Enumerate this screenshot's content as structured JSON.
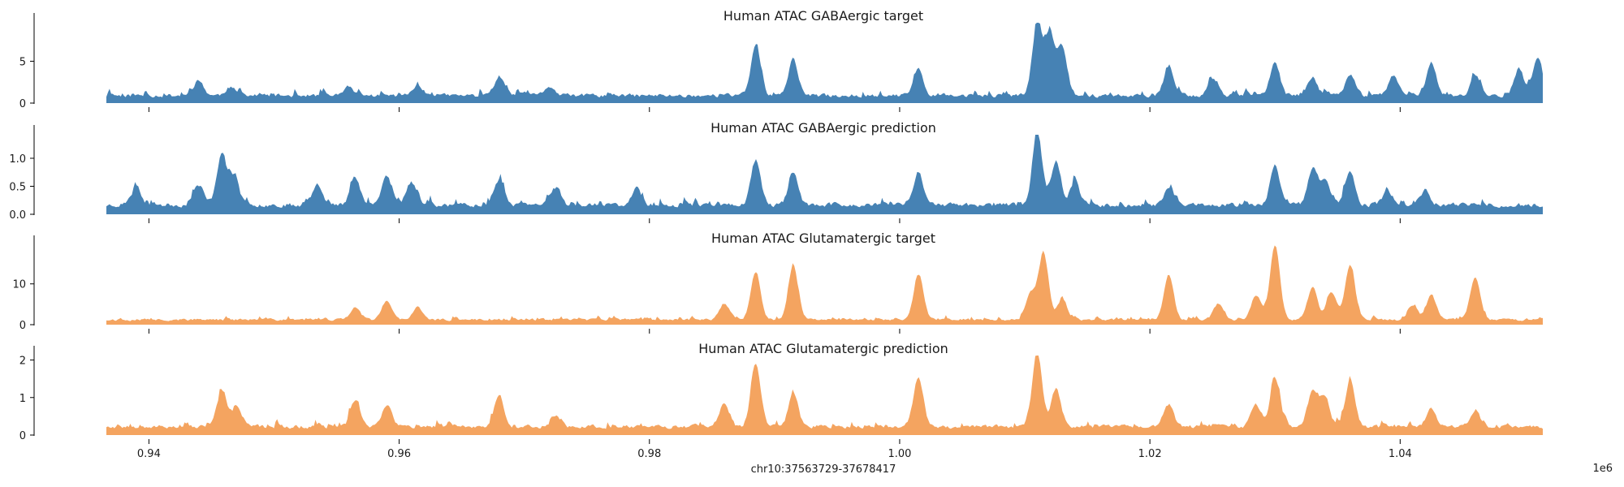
{
  "chart_data": {
    "type": "area",
    "xlabel": "chr10:37563729-37678417",
    "x_offset_label": "1e6",
    "xlim": [
      0.9366,
      1.0514
    ],
    "x_ticks": [
      0.94,
      0.96,
      0.98,
      1.0,
      1.02,
      1.04
    ],
    "x_tick_labels": [
      "0.94",
      "0.96",
      "0.98",
      "1.00",
      "1.02",
      "1.04"
    ],
    "grid": false,
    "colors": {
      "gaba": "#4682b4",
      "glut": "#f4a460"
    },
    "panels": [
      {
        "title": "Human ATAC GABAergic target",
        "color": "#4682b4",
        "ylim": [
          0,
          9.6
        ],
        "y_ticks": [
          0,
          5
        ],
        "y_tick_labels": [
          "0",
          "5"
        ],
        "baseline": 0.8,
        "noise": 0.7,
        "seed": 11,
        "peaks": [
          [
            0.944,
            1.7
          ],
          [
            0.9465,
            1.0
          ],
          [
            0.956,
            1.0
          ],
          [
            0.9615,
            1.2
          ],
          [
            0.968,
            2.3
          ],
          [
            0.972,
            1.1
          ],
          [
            0.9885,
            6.0
          ],
          [
            0.9915,
            4.3
          ],
          [
            1.0015,
            3.2
          ],
          [
            1.011,
            8.8
          ],
          [
            1.012,
            7.0
          ],
          [
            1.013,
            5.8
          ],
          [
            1.0215,
            3.4
          ],
          [
            1.025,
            2.0
          ],
          [
            1.03,
            3.8
          ],
          [
            1.033,
            2.2
          ],
          [
            1.036,
            2.6
          ],
          [
            1.0395,
            2.4
          ],
          [
            1.0425,
            4.0
          ],
          [
            1.046,
            2.4
          ],
          [
            1.0495,
            3.2
          ],
          [
            1.051,
            4.6
          ]
        ]
      },
      {
        "title": "Human ATAC GABAergic prediction",
        "color": "#4682b4",
        "ylim": [
          0,
          1.42
        ],
        "y_ticks": [
          0,
          0.5,
          1.0
        ],
        "y_tick_labels": [
          "0.0",
          "0.5",
          "1.0"
        ],
        "baseline": 0.15,
        "noise": 0.12,
        "seed": 23,
        "peaks": [
          [
            0.939,
            0.3
          ],
          [
            0.944,
            0.35
          ],
          [
            0.9458,
            0.9
          ],
          [
            0.9468,
            0.5
          ],
          [
            0.9535,
            0.38
          ],
          [
            0.9565,
            0.5
          ],
          [
            0.959,
            0.52
          ],
          [
            0.961,
            0.4
          ],
          [
            0.968,
            0.45
          ],
          [
            0.9725,
            0.3
          ],
          [
            0.979,
            0.28
          ],
          [
            0.9885,
            0.8
          ],
          [
            0.9915,
            0.55
          ],
          [
            1.0015,
            0.6
          ],
          [
            1.011,
            1.3
          ],
          [
            1.0125,
            0.8
          ],
          [
            1.014,
            0.4
          ],
          [
            1.0215,
            0.3
          ],
          [
            1.03,
            0.7
          ],
          [
            1.033,
            0.65
          ],
          [
            1.034,
            0.45
          ],
          [
            1.036,
            0.6
          ],
          [
            1.039,
            0.25
          ],
          [
            1.042,
            0.25
          ]
        ]
      },
      {
        "title": "Human ATAC Glutamatergic target",
        "color": "#f4a460",
        "ylim": [
          0,
          19.5
        ],
        "y_ticks": [
          0,
          10
        ],
        "y_tick_labels": [
          "0",
          "10"
        ],
        "baseline": 1.1,
        "noise": 0.9,
        "seed": 37,
        "peaks": [
          [
            0.9565,
            3.2
          ],
          [
            0.959,
            4.5
          ],
          [
            0.9615,
            3.0
          ],
          [
            0.986,
            4.0
          ],
          [
            0.9885,
            11.5
          ],
          [
            0.9915,
            13.0
          ],
          [
            1.0015,
            11.0
          ],
          [
            1.0105,
            6.5
          ],
          [
            1.0115,
            16.5
          ],
          [
            1.013,
            5.0
          ],
          [
            1.0215,
            11.0
          ],
          [
            1.0255,
            4.0
          ],
          [
            1.0285,
            6.0
          ],
          [
            1.03,
            18.5
          ],
          [
            1.033,
            8.0
          ],
          [
            1.0345,
            7.0
          ],
          [
            1.036,
            13.5
          ],
          [
            1.041,
            3.5
          ],
          [
            1.0425,
            6.0
          ],
          [
            1.046,
            10.5
          ]
        ]
      },
      {
        "title": "Human ATAC Glutamatergic prediction",
        "color": "#f4a460",
        "ylim": [
          0,
          2.12
        ],
        "y_ticks": [
          0,
          1,
          2
        ],
        "y_tick_labels": [
          "0",
          "1",
          "2"
        ],
        "baseline": 0.2,
        "noise": 0.16,
        "seed": 53,
        "peaks": [
          [
            0.9458,
            0.9
          ],
          [
            0.947,
            0.5
          ],
          [
            0.9565,
            0.7
          ],
          [
            0.959,
            0.6
          ],
          [
            0.968,
            0.8
          ],
          [
            0.9725,
            0.3
          ],
          [
            0.986,
            0.6
          ],
          [
            0.9885,
            1.7
          ],
          [
            0.9915,
            0.9
          ],
          [
            1.0015,
            1.35
          ],
          [
            1.011,
            2.0
          ],
          [
            1.0125,
            1.0
          ],
          [
            1.0215,
            0.6
          ],
          [
            1.0285,
            0.6
          ],
          [
            1.03,
            1.3
          ],
          [
            1.033,
            0.95
          ],
          [
            1.034,
            0.8
          ],
          [
            1.036,
            1.2
          ],
          [
            1.0425,
            0.5
          ],
          [
            1.046,
            0.4
          ]
        ]
      }
    ]
  }
}
